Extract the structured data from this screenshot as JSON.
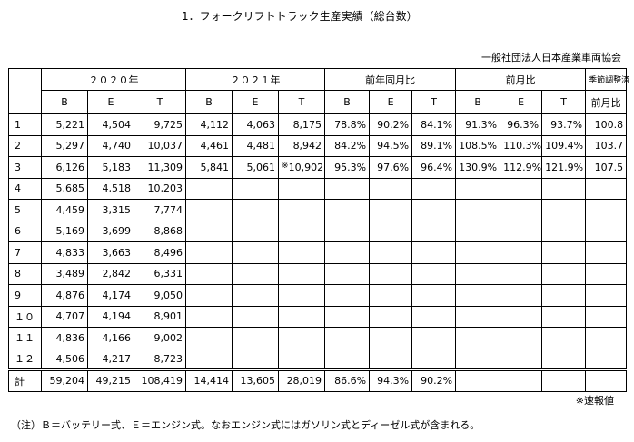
{
  "title": "1．フォークリフトトラック生産実績（総台数）",
  "organization": "一般社団法人日本産業車両協会",
  "headers": {
    "group_2020": "２０２０年",
    "group_2021": "２０２１年",
    "group_yoy": "前年同月比",
    "group_mom": "前月比",
    "seasonal_line1": "季節調整済",
    "seasonal_line2": "前月比",
    "col_b": "B",
    "col_e": "E",
    "col_t": "T"
  },
  "rows": [
    {
      "label": "1",
      "b2020": "5,221",
      "e2020": "4,504",
      "t2020": "9,725",
      "b2021": "4,112",
      "e2021": "4,063",
      "t2021": "8,175",
      "yoy_b": "78.8%",
      "yoy_e": "90.2%",
      "yoy_t": "84.1%",
      "mom_b": "91.3%",
      "mom_e": "96.3%",
      "mom_t": "93.7%",
      "seasonal": "100.8"
    },
    {
      "label": "2",
      "b2020": "5,297",
      "e2020": "4,740",
      "t2020": "10,037",
      "b2021": "4,461",
      "e2021": "4,481",
      "t2021": "8,942",
      "yoy_b": "84.2%",
      "yoy_e": "94.5%",
      "yoy_t": "89.1%",
      "mom_b": "108.5%",
      "mom_e": "110.3%",
      "mom_t": "109.4%",
      "seasonal": "103.7"
    },
    {
      "label": "3",
      "b2020": "6,126",
      "e2020": "5,183",
      "t2020": "11,309",
      "b2021": "5,841",
      "e2021": "5,061",
      "t2021_mark": "※",
      "t2021": "10,902",
      "yoy_b": "95.3%",
      "yoy_e": "97.6%",
      "yoy_t": "96.4%",
      "mom_b": "130.9%",
      "mom_e": "112.9%",
      "mom_t": "121.9%",
      "seasonal": "107.5"
    },
    {
      "label": "4",
      "b2020": "5,685",
      "e2020": "4,518",
      "t2020": "10,203"
    },
    {
      "label": "5",
      "b2020": "4,459",
      "e2020": "3,315",
      "t2020": "7,774"
    },
    {
      "label": "6",
      "b2020": "5,169",
      "e2020": "3,699",
      "t2020": "8,868"
    },
    {
      "label": "7",
      "b2020": "4,833",
      "e2020": "3,663",
      "t2020": "8,496"
    },
    {
      "label": "8",
      "b2020": "3,489",
      "e2020": "2,842",
      "t2020": "6,331"
    },
    {
      "label": "9",
      "b2020": "4,876",
      "e2020": "4,174",
      "t2020": "9,050"
    },
    {
      "label": "１０",
      "b2020": "4,707",
      "e2020": "4,194",
      "t2020": "8,901"
    },
    {
      "label": "１１",
      "b2020": "4,836",
      "e2020": "4,166",
      "t2020": "9,002"
    },
    {
      "label": "１２",
      "b2020": "4,506",
      "e2020": "4,217",
      "t2020": "8,723"
    }
  ],
  "total": {
    "label": "計",
    "b2020": "59,204",
    "e2020": "49,215",
    "t2020": "108,419",
    "b2021": "14,414",
    "e2021": "13,605",
    "t2021": "28,019",
    "yoy_b": "86.6%",
    "yoy_e": "94.3%",
    "yoy_t": "90.2%"
  },
  "preliminary_note": "※速報値",
  "footnote": "（注）Ｂ＝バッテリー式、Ｅ＝エンジン式。なおエンジン式にはガソリン式とディーゼル式が含まれる。"
}
